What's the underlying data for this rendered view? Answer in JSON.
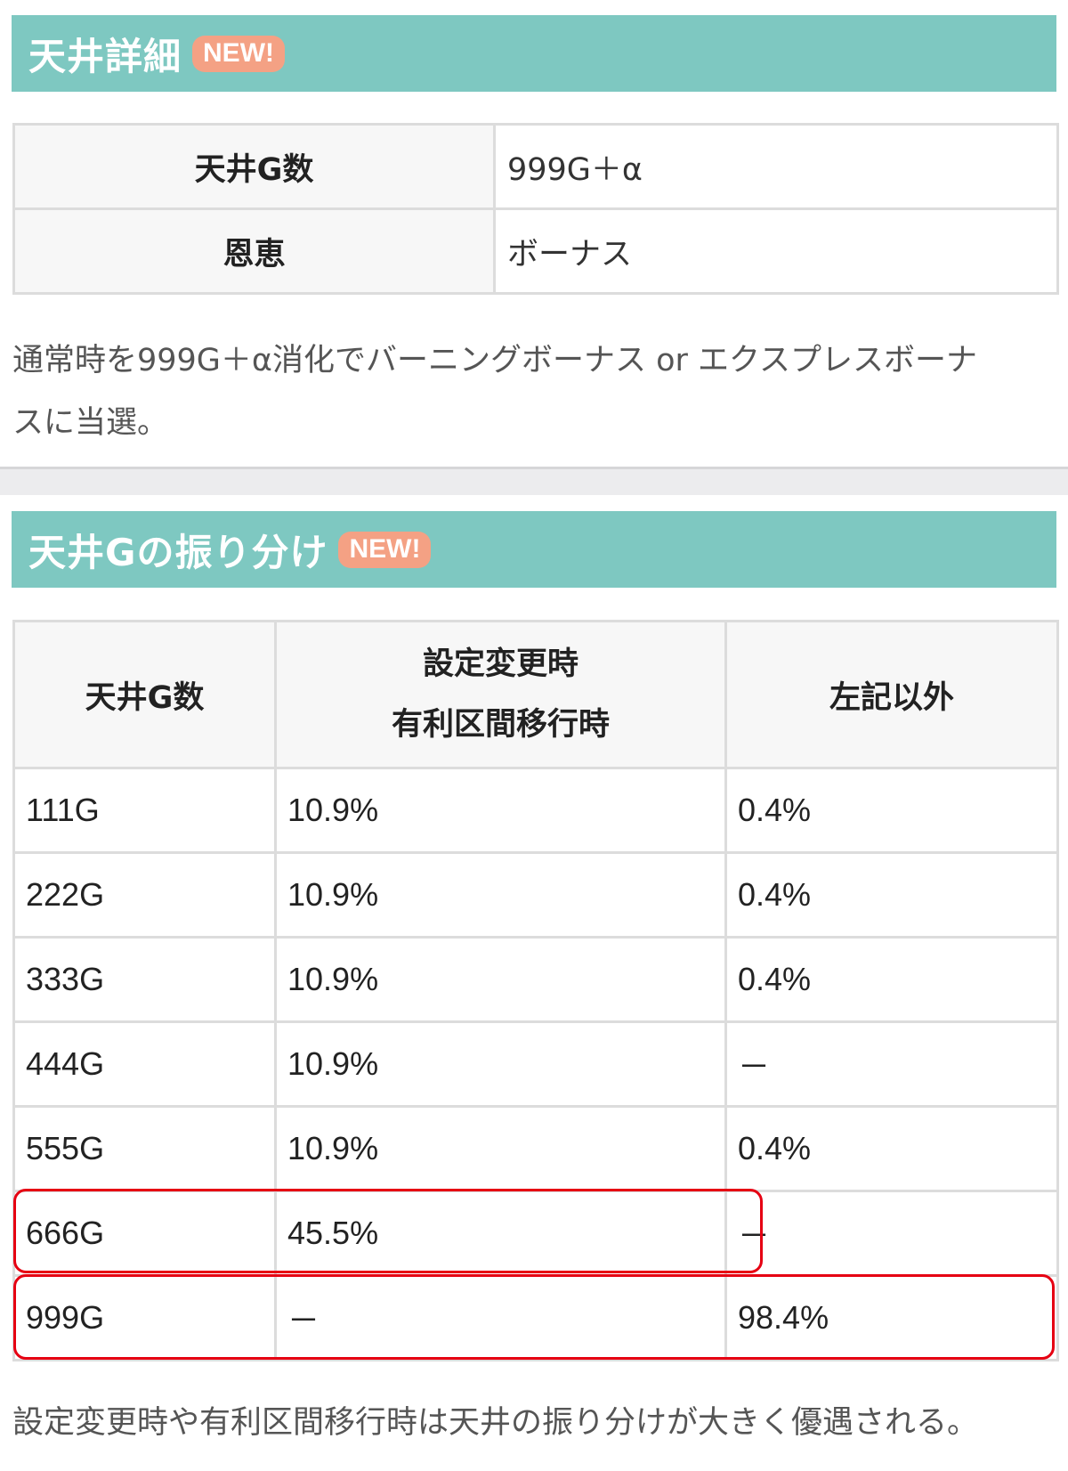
{
  "section1": {
    "title": "天井詳細",
    "badge": "NEW!",
    "table": [
      {
        "label": "天井G数",
        "value": "999G＋α"
      },
      {
        "label": "恩恵",
        "value": "ボーナス"
      }
    ],
    "description_line1": "通常時を999G＋α消化でバーニングボーナス or エクスプレスボーナ",
    "description_line2": "スに当選。"
  },
  "section2": {
    "title": "天井Gの振り分け",
    "badge": "NEW!",
    "headers": {
      "col1": "天井G数",
      "col2_line1": "設定変更時",
      "col2_line2": "有利区間移行時",
      "col3": "左記以外"
    },
    "rows": [
      {
        "game": "111G",
        "reset": "10.9%",
        "other": "0.4%"
      },
      {
        "game": "222G",
        "reset": "10.9%",
        "other": "0.4%"
      },
      {
        "game": "333G",
        "reset": "10.9%",
        "other": "0.4%"
      },
      {
        "game": "444G",
        "reset": "10.9%",
        "other": "－"
      },
      {
        "game": "555G",
        "reset": "10.9%",
        "other": "0.4%"
      },
      {
        "game": "666G",
        "reset": "45.5%",
        "other": "－"
      },
      {
        "game": "999G",
        "reset": "－",
        "other": "98.4%"
      }
    ],
    "footnote": "設定変更時や有利区間移行時は天井の振り分けが大きく優遇される。"
  },
  "colors": {
    "header_bg": "#7ec8c1",
    "badge_bg": "#f4a184",
    "highlight_border": "#e60012"
  }
}
